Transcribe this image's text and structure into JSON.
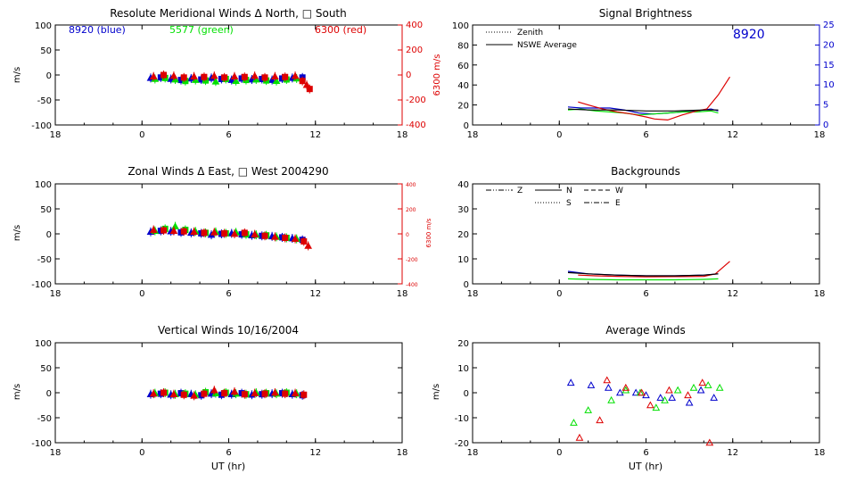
{
  "colors": {
    "blue": "#0000cc",
    "green": "#00e000",
    "red": "#dd0000",
    "black": "#000000"
  },
  "chart_data": [
    {
      "id": "meridional",
      "type": "scatter",
      "title": "Resolute Meridional Winds Δ North, □ South",
      "xlabel": "",
      "ylabel": "m/s",
      "y2label": "6300 m/s",
      "xlim": [
        18,
        42
      ],
      "ylim": [
        -100,
        100
      ],
      "y2lim": [
        -400,
        400
      ],
      "xticks": [
        18,
        24,
        30,
        36,
        42
      ],
      "xticklabels": [
        "18",
        "0",
        "6",
        "12",
        "18"
      ],
      "yticks": [
        -100,
        -50,
        0,
        50,
        100
      ],
      "y2ticks": [
        -400,
        -200,
        0,
        200,
        400
      ],
      "annotations": [
        {
          "text": "8920  (blue)",
          "color": "blue"
        },
        {
          "text": "5577  (green)",
          "color": "green"
        },
        {
          "text": "6300  (red)",
          "color": "red"
        }
      ],
      "series": [
        {
          "color": "blue",
          "x": [
            24.6,
            25.3,
            26.0,
            26.7,
            27.4,
            28.1,
            28.8,
            29.5,
            30.2,
            30.9,
            31.6,
            32.3,
            33.0,
            33.7,
            34.4,
            35.1
          ],
          "y": [
            -6,
            -5,
            -8,
            -10,
            -7,
            -9,
            -6,
            -8,
            -10,
            -7,
            -9,
            -8,
            -10,
            -7,
            -6,
            -5
          ]
        },
        {
          "color": "green",
          "x": [
            24.9,
            25.6,
            26.3,
            27.0,
            27.7,
            28.4,
            29.1,
            29.8,
            30.5,
            31.2,
            31.9,
            32.6,
            33.3,
            34.0,
            34.7
          ],
          "y": [
            -8,
            -6,
            -9,
            -12,
            -10,
            -11,
            -13,
            -8,
            -12,
            -10,
            -9,
            -11,
            -12,
            -9,
            -7
          ]
        },
        {
          "color": "red",
          "x": [
            24.8,
            25.5,
            26.2,
            26.9,
            27.6,
            28.3,
            29.0,
            29.7,
            30.4,
            31.1,
            31.8,
            32.5,
            33.2,
            33.9,
            34.6,
            35.1,
            35.4,
            35.6
          ],
          "y": [
            -3,
            0,
            -2,
            -5,
            -3,
            -4,
            -2,
            -5,
            -3,
            -4,
            -2,
            -5,
            -3,
            -4,
            -2,
            -12,
            -20,
            -28
          ]
        }
      ]
    },
    {
      "id": "brightness",
      "type": "line",
      "title": "Signal Brightness",
      "xlabel": "",
      "ylabel": "",
      "xlim": [
        18,
        42
      ],
      "ylim": [
        0,
        100
      ],
      "y2lim": [
        0,
        25
      ],
      "xticks": [
        18,
        24,
        30,
        36,
        42
      ],
      "xticklabels": [
        "18",
        "0",
        "6",
        "12",
        "18"
      ],
      "yticks": [
        0,
        20,
        40,
        60,
        80,
        100
      ],
      "y2ticks": [
        0,
        5,
        10,
        15,
        20,
        25
      ],
      "big_label": "8920",
      "legend": [
        {
          "label": "Zenith",
          "style": "dotted"
        },
        {
          "label": "NSWE Average",
          "style": "solid"
        }
      ],
      "series": [
        {
          "color": "blue",
          "x": [
            24.6,
            25.5,
            26.5,
            27.5,
            28.5,
            29.5,
            30.5,
            31.5,
            32.5,
            33.5,
            34.5,
            35.0
          ],
          "y": [
            18,
            17,
            17,
            17,
            15,
            12,
            11,
            12,
            13,
            14,
            16,
            14
          ]
        },
        {
          "color": "green",
          "x": [
            24.6,
            25.5,
            26.5,
            27.5,
            28.5,
            29.5,
            30.5,
            31.5,
            32.5,
            33.5,
            34.5,
            35.0
          ],
          "y": [
            15,
            16,
            14,
            13,
            12,
            10,
            11,
            12,
            13,
            13,
            14,
            12
          ]
        },
        {
          "color": "red",
          "x": [
            25.3,
            26.0,
            27.0,
            28.0,
            29.0,
            30.0,
            30.6,
            31.5,
            32.5,
            33.5,
            34.2,
            35.0,
            35.8
          ],
          "y": [
            23,
            20,
            16,
            13,
            11,
            8,
            6,
            5,
            10,
            14,
            16,
            30,
            48
          ]
        },
        {
          "color": "black",
          "x": [
            24.6,
            26.0,
            28.0,
            30.0,
            32.0,
            34.0,
            35.0
          ],
          "y": [
            16,
            15,
            15,
            14,
            14,
            15,
            15
          ]
        }
      ]
    },
    {
      "id": "zonal",
      "type": "scatter",
      "title": "Zonal Winds Δ East, □ West 2004290",
      "xlabel": "",
      "ylabel": "m/s",
      "y2label": "6300 m/s",
      "xlim": [
        18,
        42
      ],
      "ylim": [
        -100,
        100
      ],
      "y2lim": [
        -400,
        400
      ],
      "xticks": [
        18,
        24,
        30,
        36,
        42
      ],
      "xticklabels": [
        "18",
        "0",
        "6",
        "12",
        "18"
      ],
      "yticks": [
        -100,
        -50,
        0,
        50,
        100
      ],
      "y2ticks": [
        -400,
        -200,
        0,
        200,
        400
      ],
      "series": [
        {
          "color": "blue",
          "x": [
            24.6,
            25.3,
            26.0,
            26.7,
            27.4,
            28.1,
            28.8,
            29.5,
            30.2,
            30.9,
            31.6,
            32.3,
            33.0,
            33.7,
            34.4,
            35.1
          ],
          "y": [
            4,
            6,
            5,
            3,
            2,
            1,
            -2,
            0,
            1,
            -1,
            -3,
            -4,
            -5,
            -7,
            -9,
            -12
          ]
        },
        {
          "color": "green",
          "x": [
            24.9,
            25.6,
            26.3,
            27.0,
            27.7,
            28.4,
            29.1,
            29.8,
            30.5,
            31.2,
            31.9,
            32.6,
            33.3,
            34.0,
            34.7
          ],
          "y": [
            6,
            10,
            15,
            8,
            5,
            2,
            4,
            1,
            3,
            -1,
            -2,
            -3,
            -6,
            -8,
            -10
          ]
        },
        {
          "color": "red",
          "x": [
            24.8,
            25.5,
            26.2,
            26.9,
            27.6,
            28.3,
            29.0,
            29.7,
            30.4,
            31.1,
            31.8,
            32.5,
            33.2,
            33.9,
            34.6,
            35.2,
            35.5
          ],
          "y": [
            8,
            7,
            6,
            5,
            4,
            2,
            3,
            1,
            0,
            2,
            -1,
            -4,
            -6,
            -8,
            -10,
            -15,
            -24
          ]
        }
      ]
    },
    {
      "id": "backgrounds",
      "type": "line",
      "title": "Backgrounds",
      "xlabel": "",
      "ylabel": "",
      "xlim": [
        18,
        42
      ],
      "ylim": [
        0,
        40
      ],
      "xticks": [
        18,
        24,
        30,
        36,
        42
      ],
      "xticklabels": [
        "18",
        "0",
        "6",
        "12",
        "18"
      ],
      "yticks": [
        0,
        10,
        20,
        30,
        40
      ],
      "legend": [
        {
          "label": "Z",
          "style": "dashdotdot"
        },
        {
          "label": "N",
          "style": "solid"
        },
        {
          "label": "W",
          "style": "dashed"
        },
        {
          "label": "S",
          "style": "dotted"
        },
        {
          "label": "E",
          "style": "dashdot"
        }
      ],
      "series": [
        {
          "color": "blue",
          "x": [
            24.6,
            26.0,
            28.0,
            30.0,
            32.0,
            34.0,
            35.0
          ],
          "y": [
            5,
            4,
            3.5,
            3.2,
            3.2,
            3.5,
            4
          ]
        },
        {
          "color": "green",
          "x": [
            24.6,
            26.0,
            28.0,
            30.0,
            32.0,
            34.0,
            35.0
          ],
          "y": [
            2,
            1.8,
            1.6,
            1.6,
            1.6,
            1.8,
            2
          ]
        },
        {
          "color": "red",
          "x": [
            25.3,
            26.5,
            28.0,
            30.0,
            32.0,
            34.0,
            34.8,
            35.4,
            35.8
          ],
          "y": [
            3.5,
            3.2,
            3,
            2.8,
            2.9,
            3,
            4,
            7,
            9
          ]
        },
        {
          "color": "black",
          "x": [
            24.6,
            26.0,
            28.0,
            30.0,
            32.0,
            34.0,
            35.0
          ],
          "y": [
            4.5,
            4,
            3.5,
            3.2,
            3.2,
            3.5,
            4
          ]
        }
      ]
    },
    {
      "id": "vertical",
      "type": "scatter",
      "title": "Vertical Winds 10/16/2004",
      "xlabel": "UT (hr)",
      "ylabel": "m/s",
      "xlim": [
        18,
        42
      ],
      "ylim": [
        -100,
        100
      ],
      "xticks": [
        18,
        24,
        30,
        36,
        42
      ],
      "xticklabels": [
        "18",
        "0",
        "6",
        "12",
        "18"
      ],
      "yticks": [
        -100,
        -50,
        0,
        50,
        100
      ],
      "series": [
        {
          "color": "blue",
          "x": [
            24.6,
            25.3,
            26.0,
            26.7,
            27.4,
            28.1,
            28.8,
            29.5,
            30.2,
            30.9,
            31.6,
            32.3,
            33.0,
            33.7,
            34.4,
            35.1
          ],
          "y": [
            -3,
            -2,
            -4,
            -1,
            -3,
            -5,
            -2,
            -4,
            -3,
            -1,
            -4,
            -3,
            -2,
            -1,
            -3,
            -5
          ]
        },
        {
          "color": "green",
          "x": [
            24.9,
            25.6,
            26.3,
            27.0,
            27.7,
            28.4,
            29.1,
            29.8,
            30.5,
            31.2,
            31.9,
            32.6,
            33.3,
            34.0,
            34.7
          ],
          "y": [
            -1,
            0,
            -3,
            -2,
            -4,
            1,
            -1,
            0,
            -2,
            -3,
            0,
            -1,
            -2,
            0,
            -2
          ]
        },
        {
          "color": "red",
          "x": [
            24.8,
            25.5,
            26.2,
            26.9,
            27.6,
            28.3,
            29.0,
            29.7,
            30.4,
            31.1,
            31.8,
            32.5,
            33.2,
            33.9,
            34.6,
            35.2
          ],
          "y": [
            -2,
            0,
            -3,
            -4,
            -6,
            -2,
            5,
            -1,
            2,
            -3,
            -1,
            -2,
            0,
            -2,
            -1,
            -4
          ]
        }
      ]
    },
    {
      "id": "average",
      "type": "scatter",
      "title": "Average Winds",
      "xlabel": "UT (hr)",
      "ylabel": "m/s",
      "xlim": [
        18,
        42
      ],
      "ylim": [
        -20,
        20
      ],
      "xticks": [
        18,
        24,
        30,
        36,
        42
      ],
      "xticklabels": [
        "18",
        "0",
        "6",
        "12",
        "18"
      ],
      "yticks": [
        -20,
        -10,
        0,
        10,
        20
      ],
      "series": [
        {
          "color": "blue",
          "x": [
            24.8,
            26.2,
            27.4,
            28.2,
            29.3,
            30.0,
            31.0,
            31.8,
            33.0,
            33.8,
            34.7
          ],
          "y": [
            4,
            3,
            2,
            0,
            0,
            -1,
            -2,
            -2,
            -4,
            1,
            -2
          ]
        },
        {
          "color": "green",
          "x": [
            25.0,
            26.0,
            27.6,
            28.6,
            29.6,
            30.7,
            31.3,
            32.2,
            33.3,
            34.3,
            35.1
          ],
          "y": [
            -12,
            -7,
            -3,
            1,
            0,
            -6,
            -3,
            1,
            2,
            3,
            2
          ]
        },
        {
          "color": "red",
          "x": [
            25.4,
            26.8,
            27.3,
            28.6,
            29.7,
            30.3,
            31.6,
            32.9,
            33.9,
            34.4
          ],
          "y": [
            -18,
            -11,
            5,
            2,
            0,
            -5,
            1,
            -1,
            4,
            -20
          ]
        }
      ]
    }
  ]
}
